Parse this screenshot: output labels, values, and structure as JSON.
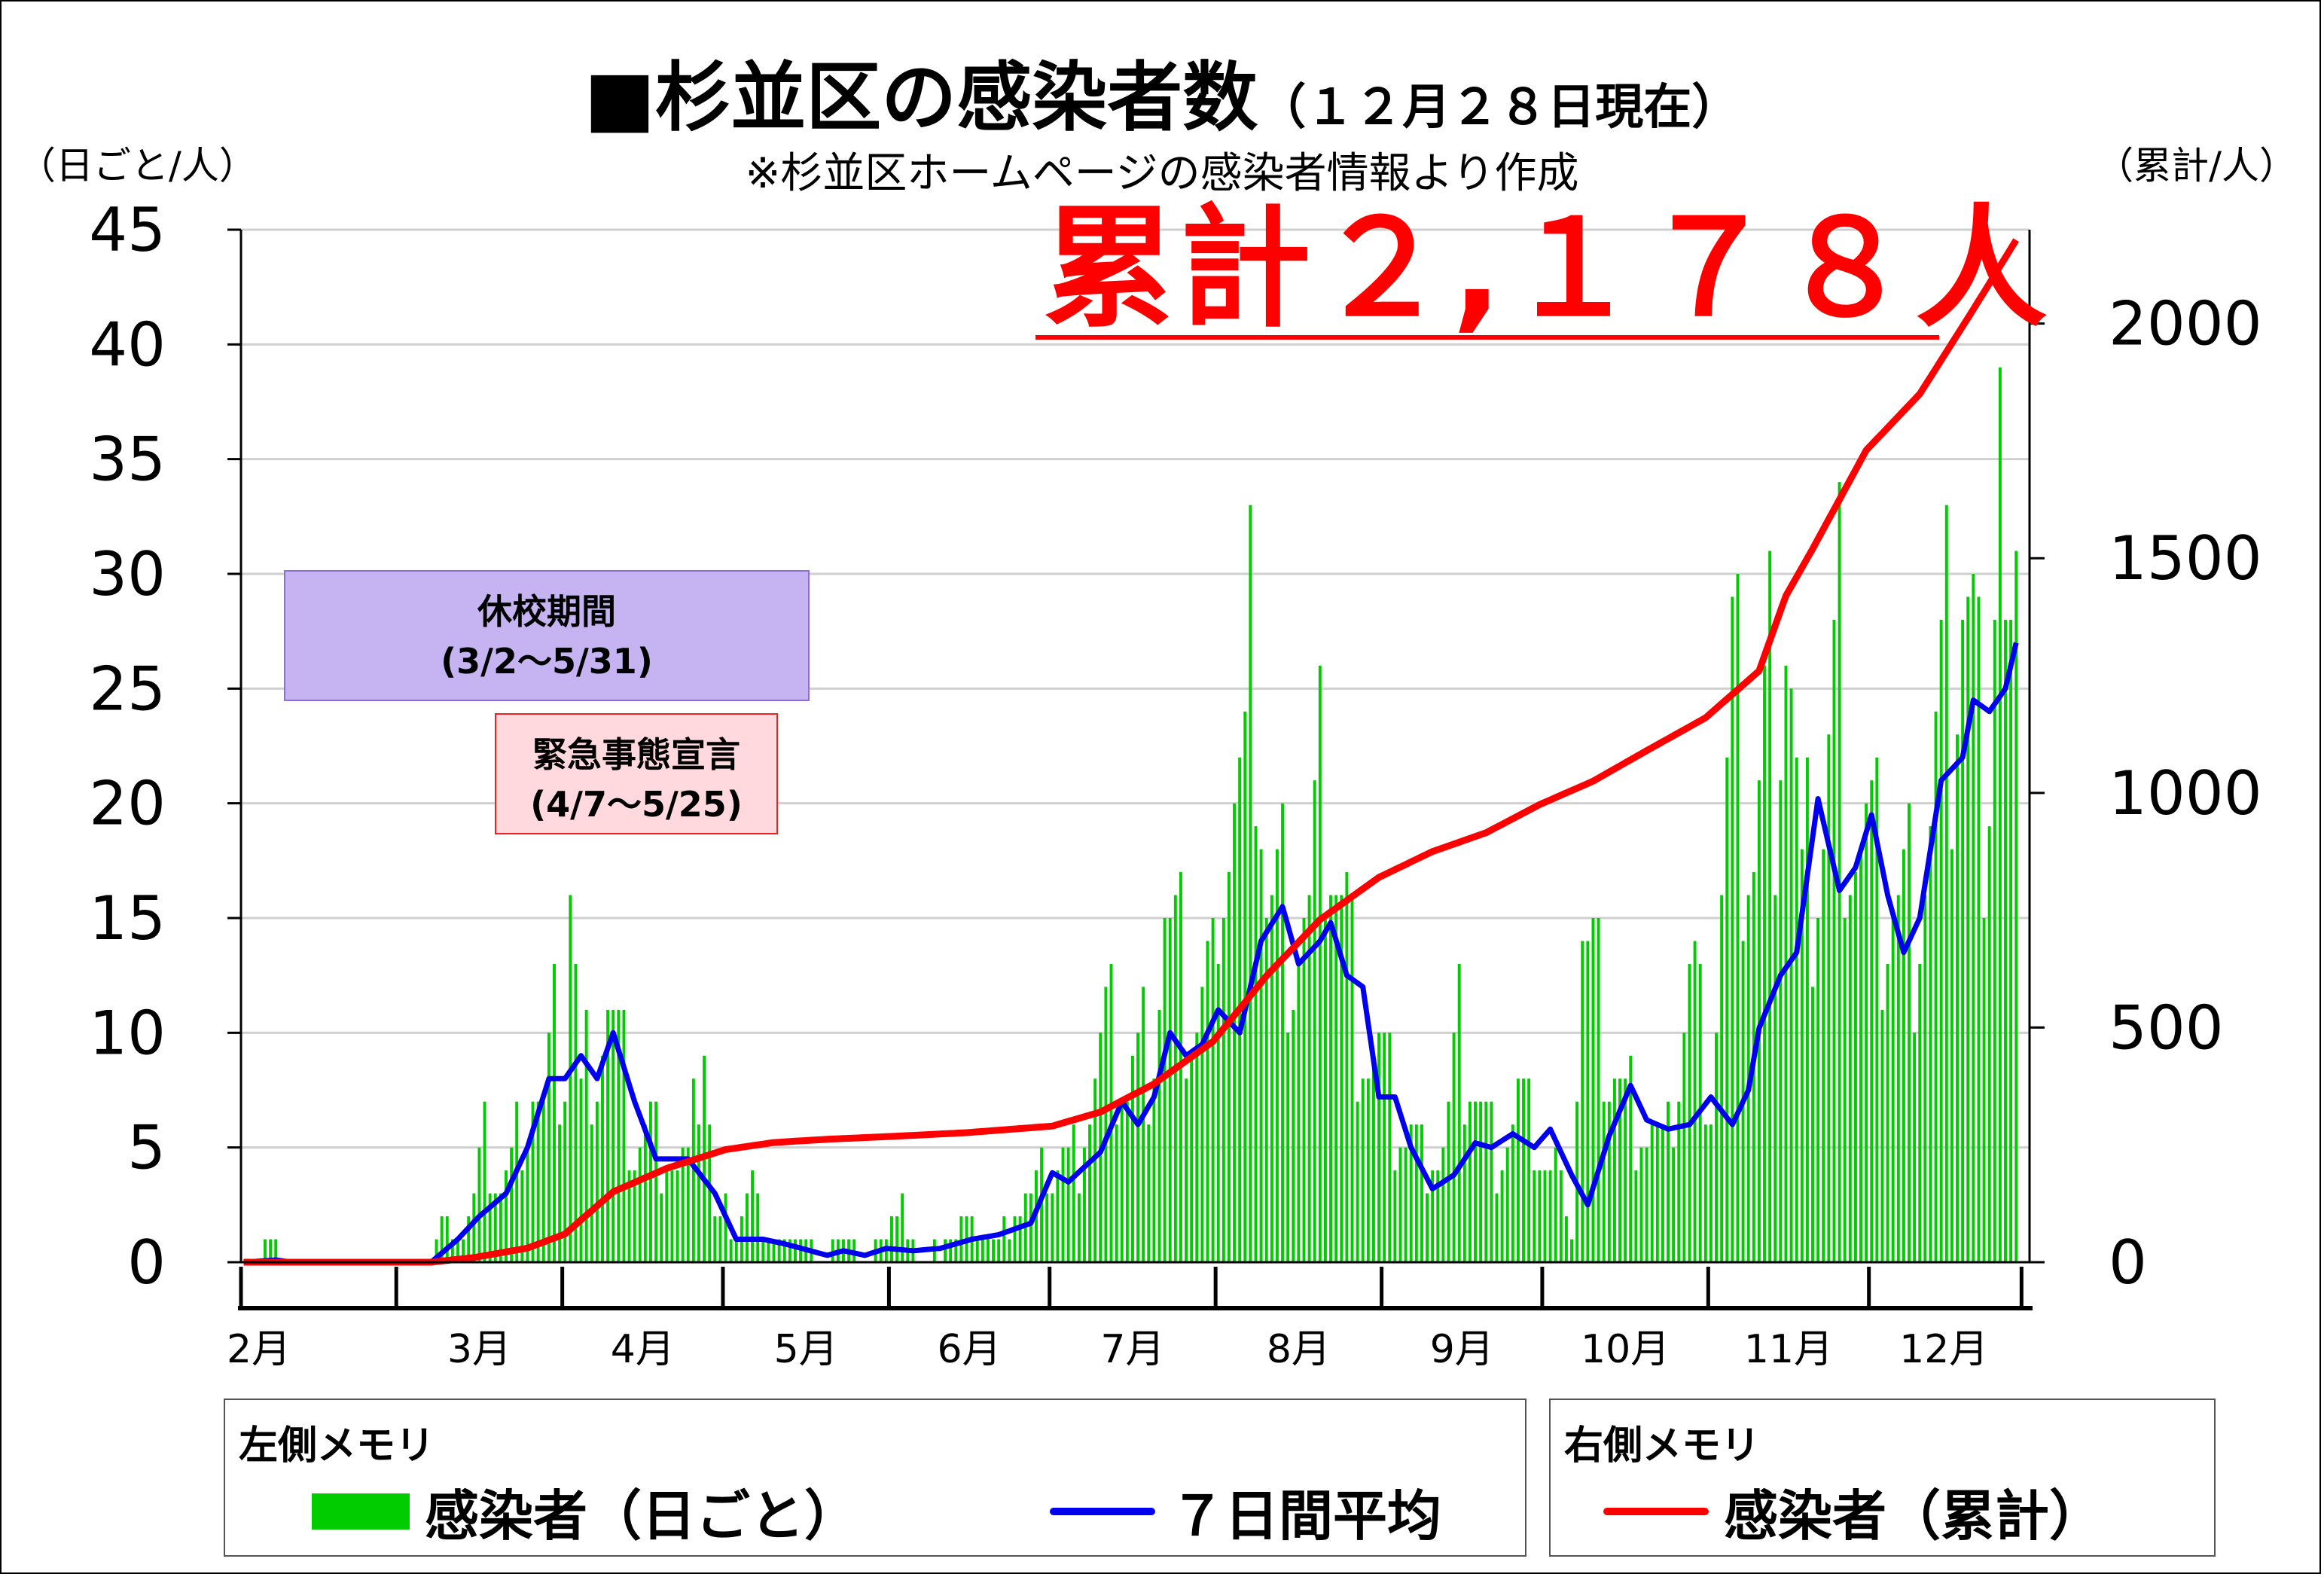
{
  "title": "■杉並区の感染者数",
  "title_date": "（１２月２８日現在）",
  "subtitle": "※杉並区ホームページの感染者情報より作成",
  "unit_left": "（日ごと/人）",
  "unit_right": "（累計/人）",
  "total_label": "累計２,１７８人",
  "notes": {
    "school": {
      "line1": "休校期間",
      "line2": "(3/2～5/31)"
    },
    "emergency": {
      "line1": "緊急事態宣言",
      "line2": "(4/7～5/25)"
    }
  },
  "legend": {
    "left_heading": "左側メモリ",
    "right_heading": "右側メモリ",
    "daily_label": "感染者（日ごと）",
    "avg_label": "７日間平均",
    "cumulative_label": "感染者（累計）"
  },
  "colors": {
    "daily": "#00cc00",
    "avg": "#0000ee",
    "cumulative": "#ff0000",
    "grid": "#d0d0d0"
  },
  "chart_data": {
    "type": "bar",
    "title": "杉並区の感染者数",
    "months": [
      "2月",
      "3月",
      "4月",
      "5月",
      "6月",
      "7月",
      "8月",
      "9月",
      "10月",
      "11月",
      "12月"
    ],
    "month_lengths": [
      29,
      31,
      30,
      31,
      30,
      31,
      31,
      30,
      31,
      30,
      28
    ],
    "start_date": "2020-02-01",
    "end_date": "2020-12-28",
    "left_axis": {
      "label": "（日ごと/人）",
      "ylim": [
        0,
        45
      ],
      "ticks": [
        0,
        5,
        10,
        15,
        20,
        25,
        30,
        35,
        40,
        45
      ]
    },
    "right_axis": {
      "label": "（累計/人）",
      "ylim": [
        0,
        2200
      ],
      "ticks": [
        0,
        500,
        1000,
        1500,
        2000
      ]
    },
    "grid": true,
    "series": [
      {
        "name": "感染者（日ごと）",
        "type": "bar",
        "axis": "left",
        "anchors": [
          [
            "2020-02-01",
            0
          ],
          [
            "2020-02-07",
            1
          ],
          [
            "2020-02-08",
            0
          ],
          [
            "2020-03-07",
            0
          ],
          [
            "2020-03-09",
            2
          ],
          [
            "2020-03-12",
            1
          ],
          [
            "2020-03-15",
            3
          ],
          [
            "2020-03-17",
            5
          ],
          [
            "2020-03-20",
            3
          ],
          [
            "2020-03-24",
            6
          ],
          [
            "2020-03-26",
            8
          ],
          [
            "2020-03-28",
            6
          ],
          [
            "2020-03-30",
            10
          ],
          [
            "2020-04-01",
            9
          ],
          [
            "2020-04-02",
            18
          ],
          [
            "2020-04-04",
            7
          ],
          [
            "2020-04-06",
            10
          ],
          [
            "2020-04-09",
            11
          ],
          [
            "2020-04-12",
            8
          ],
          [
            "2020-04-14",
            5
          ],
          [
            "2020-04-17",
            6
          ],
          [
            "2020-04-20",
            5
          ],
          [
            "2020-04-24",
            4
          ],
          [
            "2020-04-27",
            11
          ],
          [
            "2020-04-29",
            2
          ],
          [
            "2020-05-03",
            2
          ],
          [
            "2020-05-06",
            4
          ],
          [
            "2020-05-08",
            1
          ],
          [
            "2020-05-12",
            1
          ],
          [
            "2020-05-16",
            1
          ],
          [
            "2020-05-20",
            0
          ],
          [
            "2020-05-22",
            2
          ],
          [
            "2020-05-26",
            0
          ],
          [
            "2020-05-30",
            1
          ],
          [
            "2020-06-03",
            2
          ],
          [
            "2020-06-07",
            0
          ],
          [
            "2020-06-12",
            1
          ],
          [
            "2020-06-17",
            2
          ],
          [
            "2020-06-21",
            1
          ],
          [
            "2020-06-26",
            3
          ],
          [
            "2020-07-01",
            4
          ],
          [
            "2020-07-05",
            5
          ],
          [
            "2020-07-08",
            7
          ],
          [
            "2020-07-11",
            10
          ],
          [
            "2020-07-15",
            8
          ],
          [
            "2020-07-19",
            10
          ],
          [
            "2020-07-22",
            15
          ],
          [
            "2020-07-24",
            13
          ],
          [
            "2020-07-27",
            11
          ],
          [
            "2020-07-31",
            12
          ],
          [
            "2020-08-01",
            21
          ],
          [
            "2020-08-06",
            20
          ],
          [
            "2020-08-08",
            29
          ],
          [
            "2020-08-10",
            16
          ],
          [
            "2020-08-14",
            16
          ],
          [
            "2020-08-18",
            15
          ],
          [
            "2020-08-21",
            22
          ],
          [
            "2020-08-24",
            16
          ],
          [
            "2020-08-27",
            11
          ],
          [
            "2020-08-31",
            9
          ],
          [
            "2020-09-04",
            6
          ],
          [
            "2020-09-08",
            5
          ],
          [
            "2020-09-12",
            5
          ],
          [
            "2020-09-15",
            10
          ],
          [
            "2020-09-18",
            8
          ],
          [
            "2020-09-22",
            5
          ],
          [
            "2020-09-26",
            7
          ],
          [
            "2020-09-30",
            5
          ],
          [
            "2020-10-03",
            4
          ],
          [
            "2020-10-06",
            2
          ],
          [
            "2020-10-08",
            14
          ],
          [
            "2020-10-12",
            10
          ],
          [
            "2020-10-16",
            7
          ],
          [
            "2020-10-20",
            6
          ],
          [
            "2020-10-24",
            5
          ],
          [
            "2020-10-28",
            13
          ],
          [
            "2020-11-01",
            8
          ],
          [
            "2020-11-05",
            24
          ],
          [
            "2020-11-09",
            19
          ],
          [
            "2020-11-13",
            26
          ],
          [
            "2020-11-15",
            31
          ],
          [
            "2020-11-18",
            15
          ],
          [
            "2020-11-22",
            20
          ],
          [
            "2020-11-25",
            27
          ],
          [
            "2020-11-28",
            20
          ],
          [
            "2020-12-01",
            17
          ],
          [
            "2020-12-05",
            16
          ],
          [
            "2020-12-09",
            16
          ],
          [
            "2020-12-12",
            20
          ],
          [
            "2020-12-15",
            25
          ],
          [
            "2020-12-18",
            31
          ],
          [
            "2020-12-21",
            23
          ],
          [
            "2020-12-23",
            26
          ],
          [
            "2020-12-25",
            40
          ],
          [
            "2020-12-26",
            26
          ],
          [
            "2020-12-27",
            23
          ],
          [
            "2020-12-28",
            23
          ]
        ]
      },
      {
        "name": "７日間平均",
        "type": "line",
        "axis": "left",
        "anchors": [
          [
            "2020-02-01",
            0
          ],
          [
            "2020-02-07",
            0.1
          ],
          [
            "2020-02-10",
            0
          ],
          [
            "2020-03-07",
            0
          ],
          [
            "2020-03-12",
            1
          ],
          [
            "2020-03-16",
            2
          ],
          [
            "2020-03-21",
            3
          ],
          [
            "2020-03-25",
            5
          ],
          [
            "2020-03-29",
            8
          ],
          [
            "2020-04-01",
            8
          ],
          [
            "2020-04-04",
            9
          ],
          [
            "2020-04-07",
            8
          ],
          [
            "2020-04-10",
            10
          ],
          [
            "2020-04-14",
            7
          ],
          [
            "2020-04-18",
            4.5
          ],
          [
            "2020-04-24",
            4.5
          ],
          [
            "2020-04-29",
            3
          ],
          [
            "2020-05-03",
            1
          ],
          [
            "2020-05-08",
            1
          ],
          [
            "2020-05-12",
            0.8
          ],
          [
            "2020-05-20",
            0.3
          ],
          [
            "2020-05-23",
            0.5
          ],
          [
            "2020-05-27",
            0.3
          ],
          [
            "2020-05-31",
            0.6
          ],
          [
            "2020-06-05",
            0.5
          ],
          [
            "2020-06-10",
            0.6
          ],
          [
            "2020-06-16",
            1
          ],
          [
            "2020-06-21",
            1.2
          ],
          [
            "2020-06-27",
            1.7
          ],
          [
            "2020-07-01",
            3.9
          ],
          [
            "2020-07-04",
            3.5
          ],
          [
            "2020-07-10",
            4.8
          ],
          [
            "2020-07-14",
            7
          ],
          [
            "2020-07-17",
            6
          ],
          [
            "2020-07-20",
            7.2
          ],
          [
            "2020-07-23",
            10
          ],
          [
            "2020-07-26",
            9
          ],
          [
            "2020-07-29",
            9.5
          ],
          [
            "2020-08-01",
            11
          ],
          [
            "2020-08-05",
            10
          ],
          [
            "2020-08-09",
            14
          ],
          [
            "2020-08-13",
            15.5
          ],
          [
            "2020-08-16",
            13
          ],
          [
            "2020-08-20",
            14
          ],
          [
            "2020-08-22",
            14.8
          ],
          [
            "2020-08-25",
            12.5
          ],
          [
            "2020-08-28",
            12
          ],
          [
            "2020-08-31",
            7.2
          ],
          [
            "2020-09-03",
            7.2
          ],
          [
            "2020-09-06",
            5
          ],
          [
            "2020-09-10",
            3.2
          ],
          [
            "2020-09-14",
            3.8
          ],
          [
            "2020-09-18",
            5.2
          ],
          [
            "2020-09-21",
            5
          ],
          [
            "2020-09-25",
            5.6
          ],
          [
            "2020-09-29",
            5
          ],
          [
            "2020-10-02",
            5.8
          ],
          [
            "2020-10-06",
            3.8
          ],
          [
            "2020-10-09",
            2.5
          ],
          [
            "2020-10-13",
            5.5
          ],
          [
            "2020-10-17",
            7.7
          ],
          [
            "2020-10-20",
            6.2
          ],
          [
            "2020-10-24",
            5.8
          ],
          [
            "2020-10-28",
            6
          ],
          [
            "2020-11-01",
            7.2
          ],
          [
            "2020-11-05",
            6
          ],
          [
            "2020-11-08",
            7.5
          ],
          [
            "2020-11-10",
            10.2
          ],
          [
            "2020-11-14",
            12.5
          ],
          [
            "2020-11-17",
            13.5
          ],
          [
            "2020-11-21",
            20.2
          ],
          [
            "2020-11-25",
            16.2
          ],
          [
            "2020-11-28",
            17.2
          ],
          [
            "2020-12-01",
            19.5
          ],
          [
            "2020-12-04",
            16
          ],
          [
            "2020-12-07",
            13.5
          ],
          [
            "2020-12-10",
            15
          ],
          [
            "2020-12-14",
            21
          ],
          [
            "2020-12-18",
            22
          ],
          [
            "2020-12-20",
            24.5
          ],
          [
            "2020-12-23",
            24
          ],
          [
            "2020-12-26",
            25
          ],
          [
            "2020-12-28",
            27
          ]
        ]
      },
      {
        "name": "感染者（累計）",
        "type": "line",
        "axis": "right",
        "anchors": [
          [
            "2020-02-01",
            0
          ],
          [
            "2020-03-07",
            0
          ],
          [
            "2020-03-15",
            10
          ],
          [
            "2020-03-25",
            30
          ],
          [
            "2020-04-01",
            60
          ],
          [
            "2020-04-10",
            150
          ],
          [
            "2020-04-20",
            200
          ],
          [
            "2020-05-01",
            240
          ],
          [
            "2020-05-10",
            255
          ],
          [
            "2020-05-20",
            262
          ],
          [
            "2020-06-01",
            268
          ],
          [
            "2020-06-15",
            276
          ],
          [
            "2020-07-01",
            290
          ],
          [
            "2020-07-10",
            320
          ],
          [
            "2020-07-20",
            380
          ],
          [
            "2020-07-31",
            470
          ],
          [
            "2020-08-10",
            610
          ],
          [
            "2020-08-20",
            730
          ],
          [
            "2020-08-31",
            820
          ],
          [
            "2020-09-10",
            875
          ],
          [
            "2020-09-20",
            915
          ],
          [
            "2020-09-30",
            975
          ],
          [
            "2020-10-10",
            1025
          ],
          [
            "2020-10-20",
            1090
          ],
          [
            "2020-10-31",
            1160
          ],
          [
            "2020-11-10",
            1260
          ],
          [
            "2020-11-15",
            1420
          ],
          [
            "2020-11-20",
            1520
          ],
          [
            "2020-11-30",
            1730
          ],
          [
            "2020-12-10",
            1850
          ],
          [
            "2020-12-20",
            2030
          ],
          [
            "2020-12-28",
            2178
          ]
        ]
      }
    ]
  }
}
